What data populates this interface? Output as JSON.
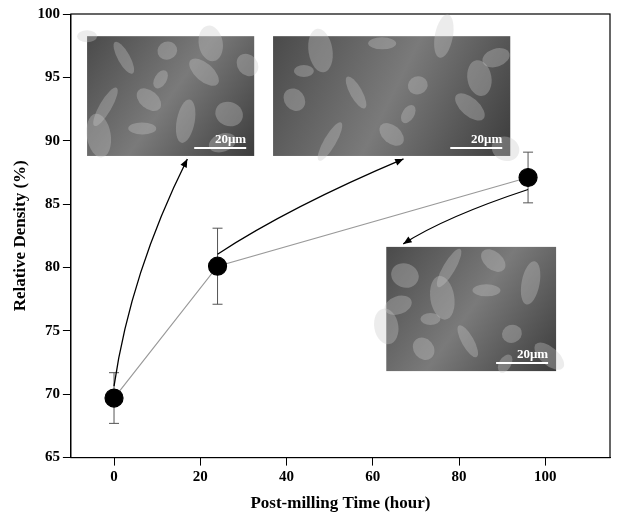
{
  "chart_data": {
    "type": "line",
    "x_label": "Post-milling Time (hour)",
    "y_label": "Relative Density (%)",
    "x": [
      0,
      24,
      96
    ],
    "values": [
      69.7,
      80.1,
      87.1
    ],
    "error": [
      2,
      3,
      2
    ],
    "xlim": [
      -10,
      115
    ],
    "xticks": [
      0,
      20,
      40,
      60,
      80,
      100
    ],
    "ylim": [
      65,
      100
    ],
    "yticks": [
      65,
      70,
      75,
      80,
      85,
      90,
      95,
      100
    ],
    "grid": false,
    "color": "#000000",
    "marker": "circle",
    "line_style": "solid",
    "annotations": [
      "20μm",
      "20μm",
      "20μm"
    ]
  }
}
